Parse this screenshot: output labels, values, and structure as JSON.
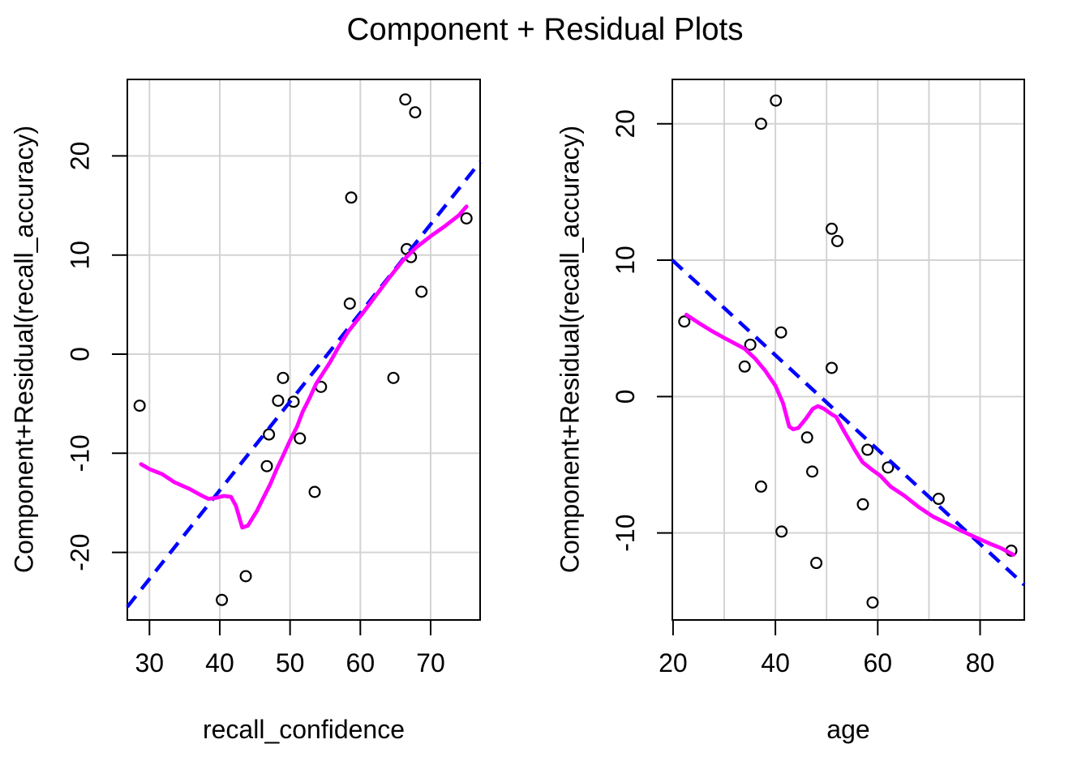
{
  "title": "Component + Residual Plots",
  "colors": {
    "regression_line": "#0000FF",
    "smooth_line": "#FF00FF",
    "grid": "#D3D3D3",
    "points": "#000000",
    "axis": "#000000"
  },
  "chart_data": [
    {
      "type": "scatter",
      "xlabel": "recall_confidence",
      "ylabel": "Component+Residual(recall_accuracy)",
      "xlim": [
        26.85,
        77.04
      ],
      "ylim": [
        -26.82,
        27.72
      ],
      "xticks": [
        30,
        40,
        50,
        60,
        70
      ],
      "yticks": [
        -20,
        -10,
        0,
        10,
        20
      ],
      "grid_x": [
        30,
        40,
        50,
        60,
        70
      ],
      "grid_y": [
        -20,
        -10,
        0,
        10,
        20
      ],
      "points": [
        [
          66.4,
          25.7
        ],
        [
          67.8,
          24.4
        ],
        [
          58.7,
          15.8
        ],
        [
          75.1,
          13.7
        ],
        [
          66.6,
          10.6
        ],
        [
          67.2,
          9.8
        ],
        [
          68.7,
          6.3
        ],
        [
          58.5,
          5.1
        ],
        [
          49.0,
          -2.4
        ],
        [
          64.7,
          -2.4
        ],
        [
          54.4,
          -3.3
        ],
        [
          48.3,
          -4.7
        ],
        [
          50.5,
          -4.8
        ],
        [
          28.6,
          -5.2
        ],
        [
          47.0,
          -8.1
        ],
        [
          51.4,
          -8.5
        ],
        [
          46.7,
          -11.3
        ],
        [
          53.5,
          -13.9
        ],
        [
          43.7,
          -22.4
        ],
        [
          40.3,
          -24.8
        ]
      ],
      "regression_line": {
        "x1": 26.85,
        "y1": -25.5,
        "x2": 77.04,
        "y2": 19.4,
        "style": "dashed"
      },
      "smooth_curve": [
        [
          28.8,
          -11.1
        ],
        [
          30,
          -11.6
        ],
        [
          31.8,
          -12.1
        ],
        [
          33.5,
          -12.9
        ],
        [
          35.7,
          -13.6
        ],
        [
          37.5,
          -14.3
        ],
        [
          38.4,
          -14.6
        ],
        [
          39.5,
          -14.5
        ],
        [
          40.6,
          -14.3
        ],
        [
          41.6,
          -14.4
        ],
        [
          42.3,
          -15.3
        ],
        [
          43.2,
          -17.5
        ],
        [
          44.0,
          -17.3
        ],
        [
          45.3,
          -15.8
        ],
        [
          46.2,
          -14.5
        ],
        [
          47.2,
          -13.1
        ],
        [
          48.1,
          -11.6
        ],
        [
          49.1,
          -10.1
        ],
        [
          50.0,
          -8.7
        ],
        [
          51.0,
          -7.3
        ],
        [
          51.8,
          -5.8
        ],
        [
          52.8,
          -4.4
        ],
        [
          53.7,
          -3.0
        ],
        [
          54.7,
          -1.9
        ],
        [
          55.7,
          -0.8
        ],
        [
          56.8,
          0.6
        ],
        [
          58.3,
          2.3
        ],
        [
          60.3,
          4.1
        ],
        [
          62.2,
          5.9
        ],
        [
          64.1,
          7.7
        ],
        [
          66.0,
          9.4
        ],
        [
          68.0,
          10.8
        ],
        [
          70.0,
          11.9
        ],
        [
          72.0,
          12.9
        ],
        [
          74.0,
          14.0
        ],
        [
          75.1,
          14.9
        ]
      ]
    },
    {
      "type": "scatter",
      "xlabel": "age",
      "ylabel": "Component+Residual(recall_accuracy)",
      "xlim": [
        19.86,
        88.64
      ],
      "ylim": [
        -16.38,
        23.25
      ],
      "xticks": [
        20,
        40,
        60,
        80
      ],
      "yticks": [
        -10,
        0,
        10,
        20
      ],
      "grid_x": [
        30,
        40,
        50,
        60,
        70,
        80
      ],
      "grid_y": [
        -10,
        0,
        10,
        20
      ],
      "points": [
        [
          40.1,
          21.7
        ],
        [
          37.2,
          20.0
        ],
        [
          51.0,
          12.3
        ],
        [
          52.1,
          11.4
        ],
        [
          22.2,
          5.5
        ],
        [
          41.1,
          4.7
        ],
        [
          35.1,
          3.8
        ],
        [
          34.0,
          2.2
        ],
        [
          51.0,
          2.1
        ],
        [
          46.2,
          -3.0
        ],
        [
          58.0,
          -3.9
        ],
        [
          62.0,
          -5.2
        ],
        [
          47.2,
          -5.5
        ],
        [
          37.2,
          -6.6
        ],
        [
          57.1,
          -7.9
        ],
        [
          71.9,
          -7.5
        ],
        [
          41.2,
          -9.9
        ],
        [
          48.0,
          -12.2
        ],
        [
          86.1,
          -11.3
        ],
        [
          59.0,
          -15.1
        ]
      ],
      "regression_line": {
        "x1": 19.86,
        "y1": 10.0,
        "x2": 88.64,
        "y2": -13.8,
        "style": "dashed"
      },
      "smooth_curve": [
        [
          22.6,
          6.0
        ],
        [
          25,
          5.4
        ],
        [
          27.6,
          4.8
        ],
        [
          30,
          4.3
        ],
        [
          32,
          3.9
        ],
        [
          34,
          3.5
        ],
        [
          36,
          2.8
        ],
        [
          38,
          1.9
        ],
        [
          40,
          0.8
        ],
        [
          41.5,
          -0.5
        ],
        [
          42.7,
          -2.2
        ],
        [
          43.5,
          -2.4
        ],
        [
          44.5,
          -2.3
        ],
        [
          46,
          -1.6
        ],
        [
          47.3,
          -0.9
        ],
        [
          48.3,
          -0.7
        ],
        [
          49.5,
          -0.9
        ],
        [
          51,
          -1.3
        ],
        [
          51.9,
          -1.5
        ],
        [
          53.5,
          -2.6
        ],
        [
          54.6,
          -3.3
        ],
        [
          55.5,
          -3.9
        ],
        [
          57,
          -4.8
        ],
        [
          59,
          -5.4
        ],
        [
          60.5,
          -5.8
        ],
        [
          62.5,
          -6.6
        ],
        [
          65.3,
          -7.3
        ],
        [
          68,
          -8.1
        ],
        [
          70.8,
          -8.8
        ],
        [
          73.5,
          -9.3
        ],
        [
          76.1,
          -9.8
        ],
        [
          79,
          -10.3
        ],
        [
          82,
          -10.8
        ],
        [
          84,
          -11.1
        ],
        [
          86.5,
          -11.6
        ]
      ]
    }
  ]
}
